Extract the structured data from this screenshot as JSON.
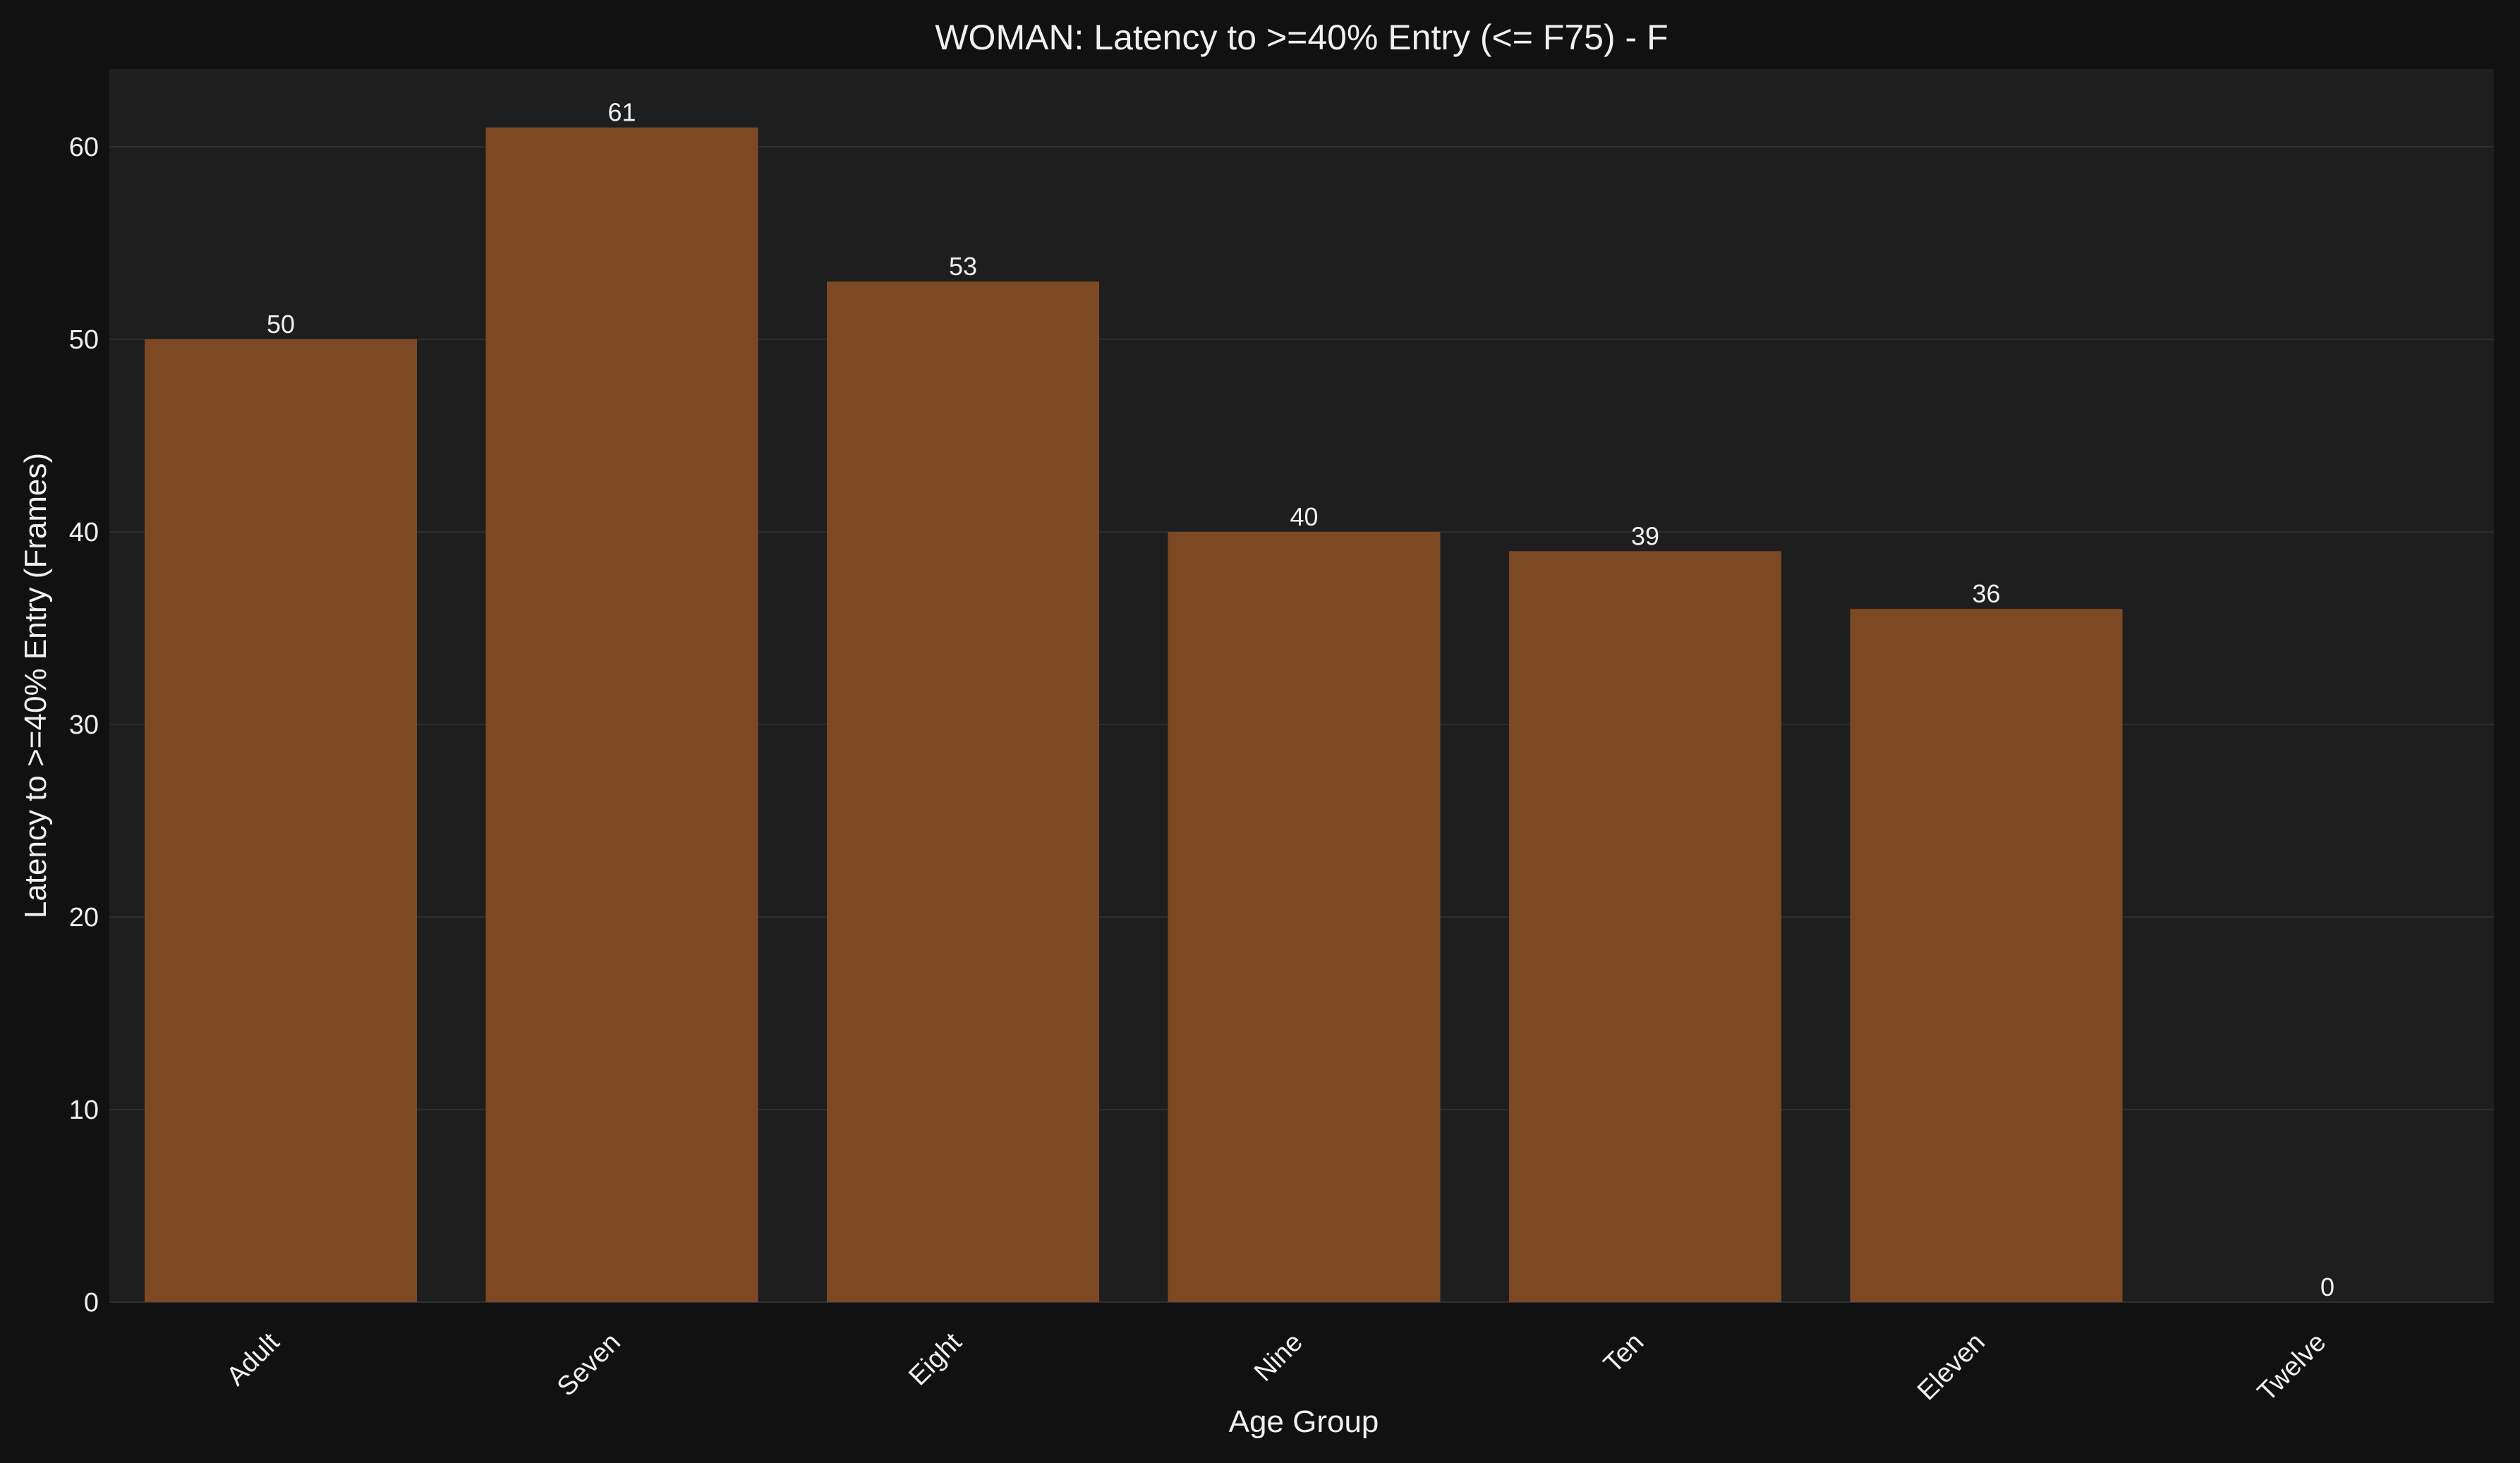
{
  "colors": {
    "background": "#111111",
    "plot_background": "#1e1e1e",
    "bar": "#7d4824",
    "grid": "#2e2e2e",
    "text": "#f0f0f0"
  },
  "chart_data": {
    "type": "bar",
    "title": "WOMAN: Latency to >=40% Entry (<= F75) - F",
    "xlabel": "Age Group",
    "ylabel": "Latency to >=40% Entry (Frames)",
    "categories": [
      "Adult",
      "Seven",
      "Eight",
      "Nine",
      "Ten",
      "Eleven",
      "Twelve"
    ],
    "values": [
      50,
      61,
      53,
      40,
      39,
      36,
      0
    ],
    "ylim": [
      0,
      64
    ],
    "yticks": [
      0,
      10,
      20,
      30,
      40,
      50,
      60
    ],
    "grid": true,
    "legend": "none"
  }
}
